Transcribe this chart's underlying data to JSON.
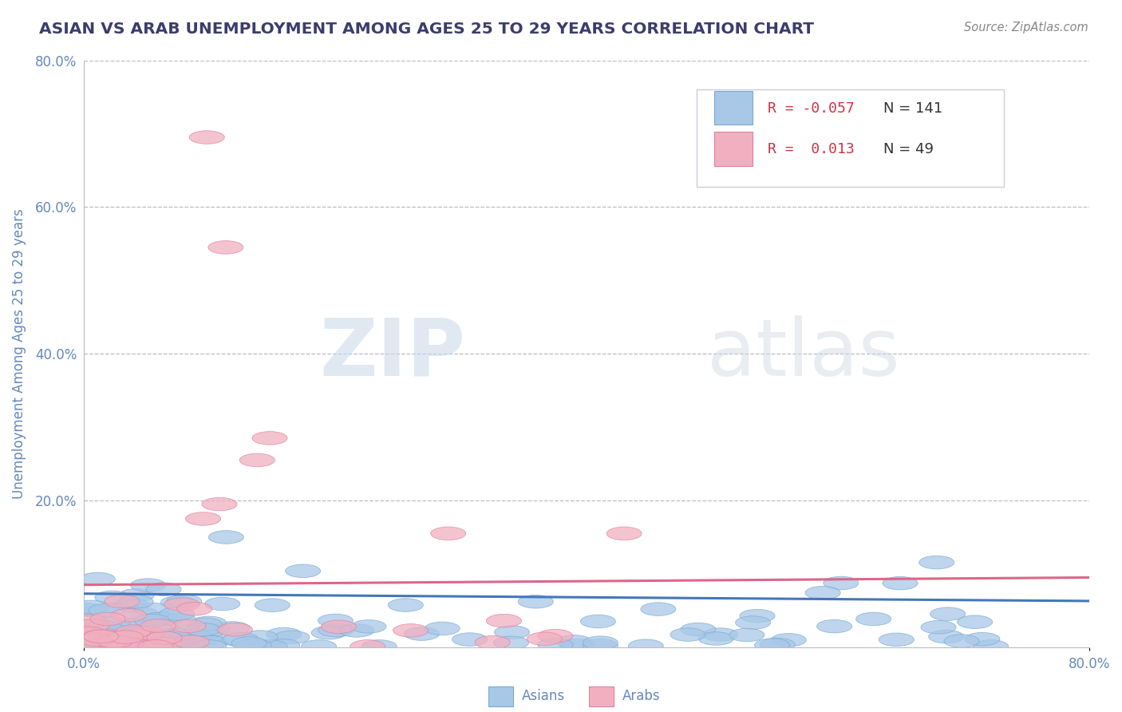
{
  "title": "ASIAN VS ARAB UNEMPLOYMENT AMONG AGES 25 TO 29 YEARS CORRELATION CHART",
  "source": "Source: ZipAtlas.com",
  "ylabel": "Unemployment Among Ages 25 to 29 years",
  "xlabel": "",
  "xlim": [
    0.0,
    0.8
  ],
  "ylim": [
    0.0,
    0.8
  ],
  "asian_color": "#A8C8E8",
  "arab_color": "#F0B0C0",
  "asian_edge_color": "#7AAAD0",
  "arab_edge_color": "#E080A0",
  "asian_line_color": "#4477BB",
  "arab_line_color": "#DD6688",
  "asian_R": -0.057,
  "asian_N": 141,
  "arab_R": 0.013,
  "arab_N": 49,
  "watermark_zip": "ZIP",
  "watermark_atlas": "atlas",
  "background_color": "#FFFFFF",
  "grid_color": "#BBBBCC",
  "title_color": "#3C3C6E",
  "axis_color": "#6688BB",
  "source_color": "#888888",
  "legend_R_color": "#CC3344",
  "legend_N_color": "#333333"
}
